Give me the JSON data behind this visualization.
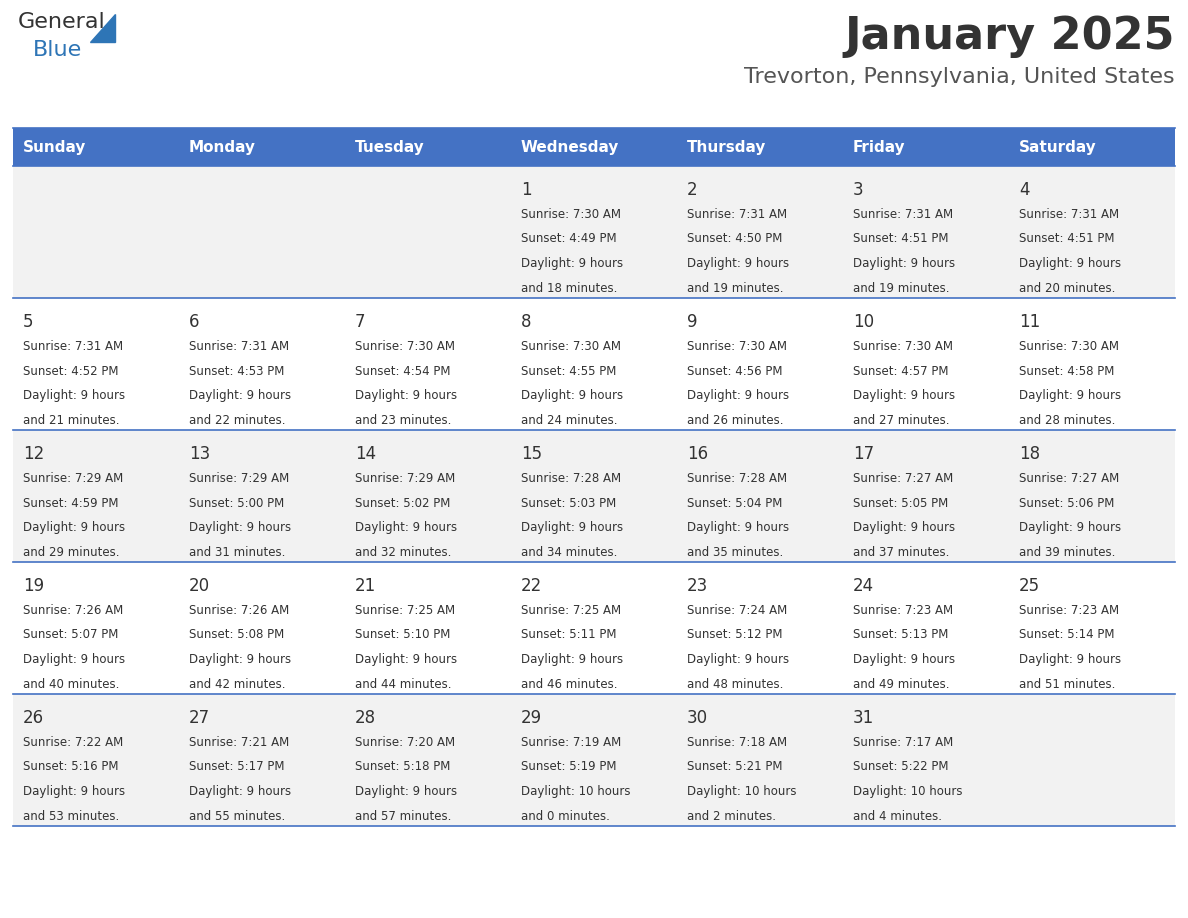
{
  "title": "January 2025",
  "subtitle": "Trevorton, Pennsylvania, United States",
  "days_of_week": [
    "Sunday",
    "Monday",
    "Tuesday",
    "Wednesday",
    "Thursday",
    "Friday",
    "Saturday"
  ],
  "header_bg_color": "#4472C4",
  "header_text_color": "#FFFFFF",
  "row_bg_even": "#F2F2F2",
  "row_bg_odd": "#FFFFFF",
  "cell_text_color": "#333333",
  "day_number_color": "#333333",
  "title_color": "#333333",
  "subtitle_color": "#555555",
  "logo_general_color": "#333333",
  "logo_blue_color": "#2E75B6",
  "calendar_data": [
    [
      {
        "day": null,
        "sunrise": null,
        "sunset": null,
        "daylight": null
      },
      {
        "day": null,
        "sunrise": null,
        "sunset": null,
        "daylight": null
      },
      {
        "day": null,
        "sunrise": null,
        "sunset": null,
        "daylight": null
      },
      {
        "day": 1,
        "sunrise": "7:30 AM",
        "sunset": "4:49 PM",
        "daylight": "9 hours\nand 18 minutes."
      },
      {
        "day": 2,
        "sunrise": "7:31 AM",
        "sunset": "4:50 PM",
        "daylight": "9 hours\nand 19 minutes."
      },
      {
        "day": 3,
        "sunrise": "7:31 AM",
        "sunset": "4:51 PM",
        "daylight": "9 hours\nand 19 minutes."
      },
      {
        "day": 4,
        "sunrise": "7:31 AM",
        "sunset": "4:51 PM",
        "daylight": "9 hours\nand 20 minutes."
      }
    ],
    [
      {
        "day": 5,
        "sunrise": "7:31 AM",
        "sunset": "4:52 PM",
        "daylight": "9 hours\nand 21 minutes."
      },
      {
        "day": 6,
        "sunrise": "7:31 AM",
        "sunset": "4:53 PM",
        "daylight": "9 hours\nand 22 minutes."
      },
      {
        "day": 7,
        "sunrise": "7:30 AM",
        "sunset": "4:54 PM",
        "daylight": "9 hours\nand 23 minutes."
      },
      {
        "day": 8,
        "sunrise": "7:30 AM",
        "sunset": "4:55 PM",
        "daylight": "9 hours\nand 24 minutes."
      },
      {
        "day": 9,
        "sunrise": "7:30 AM",
        "sunset": "4:56 PM",
        "daylight": "9 hours\nand 26 minutes."
      },
      {
        "day": 10,
        "sunrise": "7:30 AM",
        "sunset": "4:57 PM",
        "daylight": "9 hours\nand 27 minutes."
      },
      {
        "day": 11,
        "sunrise": "7:30 AM",
        "sunset": "4:58 PM",
        "daylight": "9 hours\nand 28 minutes."
      }
    ],
    [
      {
        "day": 12,
        "sunrise": "7:29 AM",
        "sunset": "4:59 PM",
        "daylight": "9 hours\nand 29 minutes."
      },
      {
        "day": 13,
        "sunrise": "7:29 AM",
        "sunset": "5:00 PM",
        "daylight": "9 hours\nand 31 minutes."
      },
      {
        "day": 14,
        "sunrise": "7:29 AM",
        "sunset": "5:02 PM",
        "daylight": "9 hours\nand 32 minutes."
      },
      {
        "day": 15,
        "sunrise": "7:28 AM",
        "sunset": "5:03 PM",
        "daylight": "9 hours\nand 34 minutes."
      },
      {
        "day": 16,
        "sunrise": "7:28 AM",
        "sunset": "5:04 PM",
        "daylight": "9 hours\nand 35 minutes."
      },
      {
        "day": 17,
        "sunrise": "7:27 AM",
        "sunset": "5:05 PM",
        "daylight": "9 hours\nand 37 minutes."
      },
      {
        "day": 18,
        "sunrise": "7:27 AM",
        "sunset": "5:06 PM",
        "daylight": "9 hours\nand 39 minutes."
      }
    ],
    [
      {
        "day": 19,
        "sunrise": "7:26 AM",
        "sunset": "5:07 PM",
        "daylight": "9 hours\nand 40 minutes."
      },
      {
        "day": 20,
        "sunrise": "7:26 AM",
        "sunset": "5:08 PM",
        "daylight": "9 hours\nand 42 minutes."
      },
      {
        "day": 21,
        "sunrise": "7:25 AM",
        "sunset": "5:10 PM",
        "daylight": "9 hours\nand 44 minutes."
      },
      {
        "day": 22,
        "sunrise": "7:25 AM",
        "sunset": "5:11 PM",
        "daylight": "9 hours\nand 46 minutes."
      },
      {
        "day": 23,
        "sunrise": "7:24 AM",
        "sunset": "5:12 PM",
        "daylight": "9 hours\nand 48 minutes."
      },
      {
        "day": 24,
        "sunrise": "7:23 AM",
        "sunset": "5:13 PM",
        "daylight": "9 hours\nand 49 minutes."
      },
      {
        "day": 25,
        "sunrise": "7:23 AM",
        "sunset": "5:14 PM",
        "daylight": "9 hours\nand 51 minutes."
      }
    ],
    [
      {
        "day": 26,
        "sunrise": "7:22 AM",
        "sunset": "5:16 PM",
        "daylight": "9 hours\nand 53 minutes."
      },
      {
        "day": 27,
        "sunrise": "7:21 AM",
        "sunset": "5:17 PM",
        "daylight": "9 hours\nand 55 minutes."
      },
      {
        "day": 28,
        "sunrise": "7:20 AM",
        "sunset": "5:18 PM",
        "daylight": "9 hours\nand 57 minutes."
      },
      {
        "day": 29,
        "sunrise": "7:19 AM",
        "sunset": "5:19 PM",
        "daylight": "10 hours\nand 0 minutes."
      },
      {
        "day": 30,
        "sunrise": "7:18 AM",
        "sunset": "5:21 PM",
        "daylight": "10 hours\nand 2 minutes."
      },
      {
        "day": 31,
        "sunrise": "7:17 AM",
        "sunset": "5:22 PM",
        "daylight": "10 hours\nand 4 minutes."
      },
      {
        "day": null,
        "sunrise": null,
        "sunset": null,
        "daylight": null
      }
    ]
  ]
}
